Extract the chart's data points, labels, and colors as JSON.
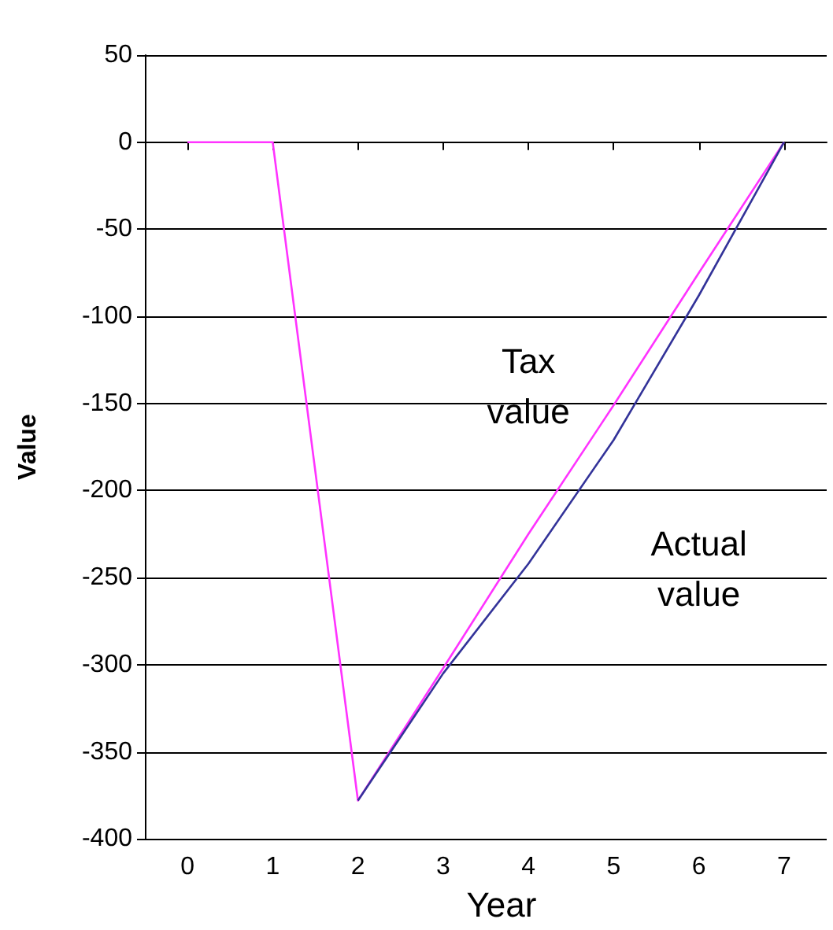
{
  "chart_data": {
    "type": "line",
    "xlabel": "Year",
    "ylabel": "Value",
    "categories": [
      "0",
      "1",
      "2",
      "3",
      "4",
      "5",
      "6",
      "7"
    ],
    "series": [
      {
        "name": "Tax value",
        "color": "#ff33ff",
        "values": [
          0,
          0,
          -378,
          -302,
          -225,
          -151,
          -75,
          0
        ]
      },
      {
        "name": "Actual value",
        "color": "#333399",
        "values": [
          null,
          null,
          -378,
          -305,
          -242,
          -171,
          -88,
          0
        ]
      }
    ],
    "ylim": [
      -400,
      50
    ],
    "yticks": [
      -400,
      -350,
      -300,
      -250,
      -200,
      -150,
      -100,
      -50,
      0,
      50
    ],
    "grid": "y",
    "marker": "none",
    "line_style": "solid"
  }
}
